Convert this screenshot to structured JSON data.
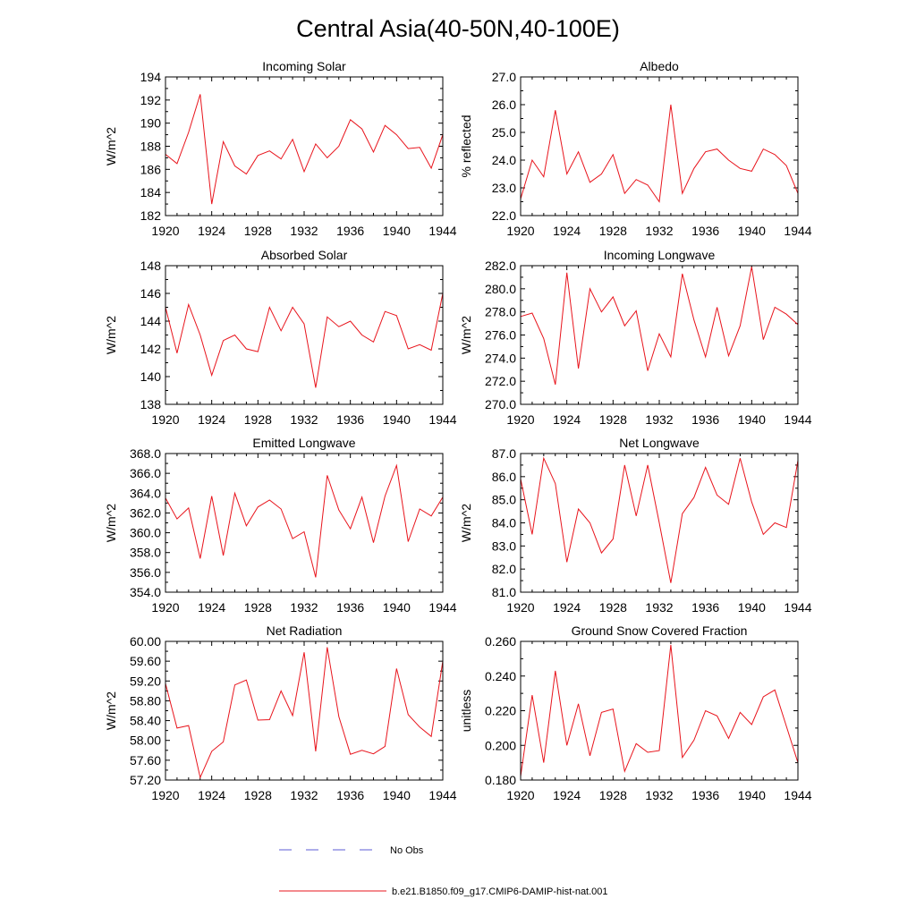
{
  "figure": {
    "title": "Central Asia(40-50N,40-100E)",
    "line_color": "#e8141c",
    "obs_color": "#5b5bd6"
  },
  "legend": {
    "items": [
      {
        "label": "No Obs",
        "style": "dashed",
        "color": "#5b5bd6"
      },
      {
        "label": "b.e21.B1850.f09_g17.CMIP6-DAMIP-hist-nat.001",
        "style": "solid",
        "color": "#e8141c"
      }
    ]
  },
  "chart_data": [
    {
      "type": "line",
      "title": "Incoming Solar",
      "ylabel": "W/m^2",
      "xlim": [
        1920,
        1944
      ],
      "ylim": [
        182,
        194
      ],
      "xticks": [
        "1920",
        "1924",
        "1928",
        "1932",
        "1936",
        "1940",
        "1944"
      ],
      "yticks": [
        "182",
        "184",
        "186",
        "188",
        "190",
        "192",
        "194"
      ],
      "x": [
        1920,
        1921,
        1922,
        1923,
        1924,
        1925,
        1926,
        1927,
        1928,
        1929,
        1930,
        1931,
        1932,
        1933,
        1934,
        1935,
        1936,
        1937,
        1938,
        1939,
        1940,
        1941,
        1942,
        1943,
        1944
      ],
      "series": [
        {
          "values": [
            187.3,
            186.5,
            189.2,
            192.5,
            183.0,
            188.4,
            186.3,
            185.6,
            187.2,
            187.6,
            186.9,
            188.6,
            185.8,
            188.2,
            187.0,
            188.0,
            190.3,
            189.5,
            187.5,
            189.8,
            189.0,
            187.8,
            187.9,
            186.1,
            189.0
          ]
        }
      ]
    },
    {
      "type": "line",
      "title": "Albedo",
      "ylabel": "% reflected",
      "xlim": [
        1920,
        1944
      ],
      "ylim": [
        22.0,
        27.0
      ],
      "xticks": [
        "1920",
        "1924",
        "1928",
        "1932",
        "1936",
        "1940",
        "1944"
      ],
      "yticks": [
        "22.0",
        "23.0",
        "24.0",
        "25.0",
        "26.0",
        "27.0"
      ],
      "x": [
        1920,
        1921,
        1922,
        1923,
        1924,
        1925,
        1926,
        1927,
        1928,
        1929,
        1930,
        1931,
        1932,
        1933,
        1934,
        1935,
        1936,
        1937,
        1938,
        1939,
        1940,
        1941,
        1942,
        1943,
        1944
      ],
      "series": [
        {
          "values": [
            22.6,
            24.0,
            23.4,
            25.8,
            23.5,
            24.3,
            23.2,
            23.5,
            24.2,
            22.8,
            23.3,
            23.1,
            22.5,
            26.0,
            22.8,
            23.7,
            24.3,
            24.4,
            24.0,
            23.7,
            23.6,
            24.4,
            24.2,
            23.8,
            22.8
          ]
        }
      ]
    },
    {
      "type": "line",
      "title": "Absorbed Solar",
      "ylabel": "W/m^2",
      "xlim": [
        1920,
        1944
      ],
      "ylim": [
        138,
        148
      ],
      "xticks": [
        "1920",
        "1924",
        "1928",
        "1932",
        "1936",
        "1940",
        "1944"
      ],
      "yticks": [
        "138",
        "140",
        "142",
        "144",
        "146",
        "148"
      ],
      "x": [
        1920,
        1921,
        1922,
        1923,
        1924,
        1925,
        1926,
        1927,
        1928,
        1929,
        1930,
        1931,
        1932,
        1933,
        1934,
        1935,
        1936,
        1937,
        1938,
        1939,
        1940,
        1941,
        1942,
        1943,
        1944
      ],
      "series": [
        {
          "values": [
            145.0,
            141.7,
            145.2,
            143.0,
            140.1,
            142.6,
            143.0,
            142.0,
            141.8,
            145.0,
            143.3,
            145.0,
            143.8,
            139.2,
            144.3,
            143.6,
            144.0,
            143.0,
            142.5,
            144.7,
            144.4,
            142.0,
            142.3,
            141.9,
            146.0
          ]
        }
      ]
    },
    {
      "type": "line",
      "title": "Incoming Longwave",
      "ylabel": "W/m^2",
      "xlim": [
        1920,
        1944
      ],
      "ylim": [
        270.0,
        282.0
      ],
      "xticks": [
        "1920",
        "1924",
        "1928",
        "1932",
        "1936",
        "1940",
        "1944"
      ],
      "yticks": [
        "270.0",
        "272.0",
        "274.0",
        "276.0",
        "278.0",
        "280.0",
        "282.0"
      ],
      "x": [
        1920,
        1921,
        1922,
        1923,
        1924,
        1925,
        1926,
        1927,
        1928,
        1929,
        1930,
        1931,
        1932,
        1933,
        1934,
        1935,
        1936,
        1937,
        1938,
        1939,
        1940,
        1941,
        1942,
        1943,
        1944
      ],
      "series": [
        {
          "values": [
            277.6,
            277.9,
            275.7,
            271.7,
            281.4,
            273.1,
            280.0,
            278.0,
            279.3,
            276.8,
            278.1,
            272.9,
            276.1,
            274.1,
            281.3,
            277.3,
            274.1,
            278.4,
            274.2,
            276.8,
            281.9,
            275.6,
            278.4,
            277.8,
            276.9
          ]
        }
      ]
    },
    {
      "type": "line",
      "title": "Emitted Longwave",
      "ylabel": "W/m^2",
      "xlim": [
        1920,
        1944
      ],
      "ylim": [
        354.0,
        368.0
      ],
      "xticks": [
        "1920",
        "1924",
        "1928",
        "1932",
        "1936",
        "1940",
        "1944"
      ],
      "yticks": [
        "354.0",
        "356.0",
        "358.0",
        "360.0",
        "362.0",
        "364.0",
        "366.0",
        "368.0"
      ],
      "x": [
        1920,
        1921,
        1922,
        1923,
        1924,
        1925,
        1926,
        1927,
        1928,
        1929,
        1930,
        1931,
        1932,
        1933,
        1934,
        1935,
        1936,
        1937,
        1938,
        1939,
        1940,
        1941,
        1942,
        1943,
        1944
      ],
      "series": [
        {
          "values": [
            363.5,
            361.4,
            362.5,
            357.4,
            363.7,
            357.7,
            364.0,
            360.7,
            362.6,
            363.3,
            362.4,
            359.4,
            360.1,
            355.5,
            365.8,
            362.3,
            360.4,
            363.6,
            359.0,
            363.7,
            366.8,
            359.1,
            362.4,
            361.7,
            363.6
          ]
        }
      ]
    },
    {
      "type": "line",
      "title": "Net Longwave",
      "ylabel": "W/m^2",
      "xlim": [
        1920,
        1944
      ],
      "ylim": [
        81.0,
        87.0
      ],
      "xticks": [
        "1920",
        "1924",
        "1928",
        "1932",
        "1936",
        "1940",
        "1944"
      ],
      "yticks": [
        "81.0",
        "82.0",
        "83.0",
        "84.0",
        "85.0",
        "86.0",
        "87.0"
      ],
      "x": [
        1920,
        1921,
        1922,
        1923,
        1924,
        1925,
        1926,
        1927,
        1928,
        1929,
        1930,
        1931,
        1932,
        1933,
        1934,
        1935,
        1936,
        1937,
        1938,
        1939,
        1940,
        1941,
        1942,
        1943,
        1944
      ],
      "series": [
        {
          "values": [
            85.9,
            83.5,
            86.8,
            85.7,
            82.3,
            84.6,
            84.0,
            82.7,
            83.3,
            86.5,
            84.3,
            86.5,
            84.0,
            81.4,
            84.4,
            85.1,
            86.4,
            85.2,
            84.8,
            86.8,
            84.9,
            83.5,
            84.0,
            83.8,
            86.7
          ]
        }
      ]
    },
    {
      "type": "line",
      "title": "Net Radiation",
      "ylabel": "W/m^2",
      "xlim": [
        1920,
        1944
      ],
      "ylim": [
        57.2,
        60.0
      ],
      "xticks": [
        "1920",
        "1924",
        "1928",
        "1932",
        "1936",
        "1940",
        "1944"
      ],
      "yticks": [
        "57.20",
        "57.60",
        "58.00",
        "58.40",
        "58.80",
        "59.20",
        "59.60",
        "60.00"
      ],
      "x": [
        1920,
        1921,
        1922,
        1923,
        1924,
        1925,
        1926,
        1927,
        1928,
        1929,
        1930,
        1931,
        1932,
        1933,
        1934,
        1935,
        1936,
        1937,
        1938,
        1939,
        1940,
        1941,
        1942,
        1943,
        1944
      ],
      "series": [
        {
          "values": [
            59.15,
            58.25,
            58.3,
            57.25,
            57.78,
            57.97,
            59.12,
            59.22,
            58.41,
            58.42,
            59.0,
            58.5,
            59.78,
            57.78,
            59.88,
            58.48,
            57.72,
            57.8,
            57.73,
            57.88,
            59.45,
            58.52,
            58.27,
            58.08,
            59.6
          ]
        }
      ]
    },
    {
      "type": "line",
      "title": "Ground Snow Covered Fraction",
      "ylabel": "unitless",
      "xlim": [
        1920,
        1944
      ],
      "ylim": [
        0.18,
        0.26
      ],
      "xticks": [
        "1920",
        "1924",
        "1928",
        "1932",
        "1936",
        "1940",
        "1944"
      ],
      "yticks": [
        "0.180",
        "0.200",
        "0.220",
        "0.240",
        "0.260"
      ],
      "x": [
        1920,
        1921,
        1922,
        1923,
        1924,
        1925,
        1926,
        1927,
        1928,
        1929,
        1930,
        1931,
        1932,
        1933,
        1934,
        1935,
        1936,
        1937,
        1938,
        1939,
        1940,
        1941,
        1942,
        1943,
        1944
      ],
      "series": [
        {
          "values": [
            0.182,
            0.229,
            0.19,
            0.243,
            0.2,
            0.224,
            0.194,
            0.219,
            0.221,
            0.185,
            0.201,
            0.196,
            0.197,
            0.258,
            0.193,
            0.203,
            0.22,
            0.217,
            0.204,
            0.219,
            0.212,
            0.228,
            0.232,
            0.211,
            0.19
          ]
        }
      ]
    }
  ]
}
